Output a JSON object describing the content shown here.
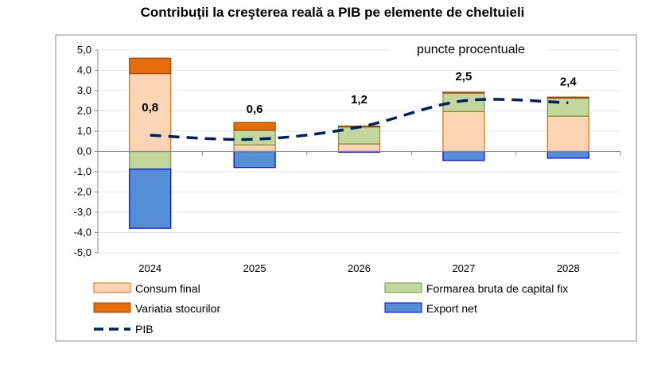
{
  "chart_data": {
    "type": "bar",
    "stacked": true,
    "title": "Contribuţii la creşterea reală a PIB pe elemente de cheltuieli",
    "annotation": "puncte procentuale",
    "categories": [
      "2024",
      "2025",
      "2026",
      "2027",
      "2028"
    ],
    "ylim": [
      -5,
      5
    ],
    "yticks": [
      "5,0",
      "4,0",
      "3,0",
      "2,0",
      "1,0",
      "0,0",
      "-1,0",
      "-2,0",
      "-3,0",
      "-4,0",
      "-5,0"
    ],
    "grid": true,
    "legend_position": "bottom",
    "series": [
      {
        "name": "Consum final",
        "type": "bar",
        "color": "#FCD5B5",
        "edge": "#E46C0A",
        "values": [
          3.84,
          0.32,
          0.37,
          1.97,
          1.74
        ]
      },
      {
        "name": "Formarea bruta de capital fix",
        "type": "bar",
        "color": "#C3D69B",
        "edge": "#77933C",
        "values": [
          -0.87,
          0.72,
          0.84,
          0.91,
          0.89
        ]
      },
      {
        "name": "Variatia stocurilor",
        "type": "bar",
        "color": "#E46C0A",
        "edge": "#984807",
        "values": [
          0.76,
          0.39,
          0.04,
          0.04,
          0.05
        ]
      },
      {
        "name": "Export net",
        "type": "bar",
        "color": "#558ED5",
        "edge": "#0000FF",
        "values": [
          -2.92,
          -0.79,
          -0.04,
          -0.45,
          -0.33
        ]
      },
      {
        "name": "PIB",
        "type": "line",
        "color": "#002060",
        "values": [
          0.8,
          0.6,
          1.2,
          2.5,
          2.4
        ],
        "labels": [
          "0,8",
          "0,6",
          "1,2",
          "2,5",
          "2,4"
        ]
      }
    ]
  }
}
